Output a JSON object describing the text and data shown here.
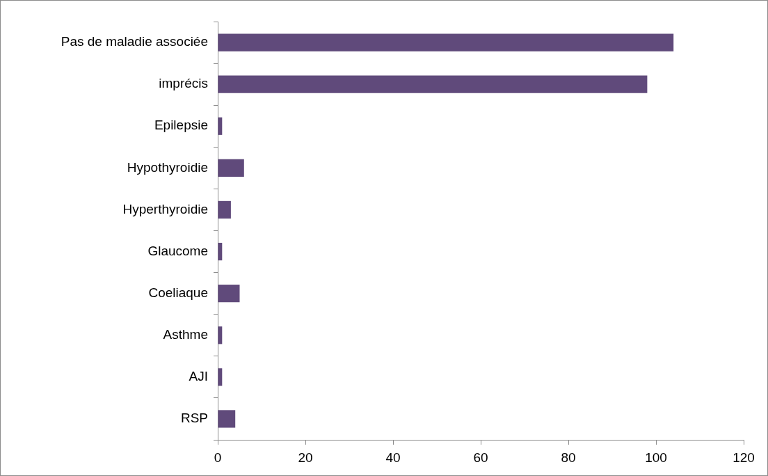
{
  "chart_data": {
    "type": "bar",
    "orientation": "horizontal",
    "categories": [
      "Pas de maladie associée",
      "imprécis",
      "Epilepsie",
      "Hypothyroidie",
      "Hyperthyroidie",
      "Glaucome",
      "Coeliaque",
      "Asthme",
      "AJI",
      "RSP"
    ],
    "values": [
      104,
      98,
      1,
      6,
      3,
      1,
      5,
      1,
      1,
      4
    ],
    "color": "#604a7b",
    "xlim": [
      0,
      120
    ],
    "xticks": [
      0,
      20,
      40,
      60,
      80,
      100,
      120
    ],
    "grid": false,
    "legend": false
  }
}
